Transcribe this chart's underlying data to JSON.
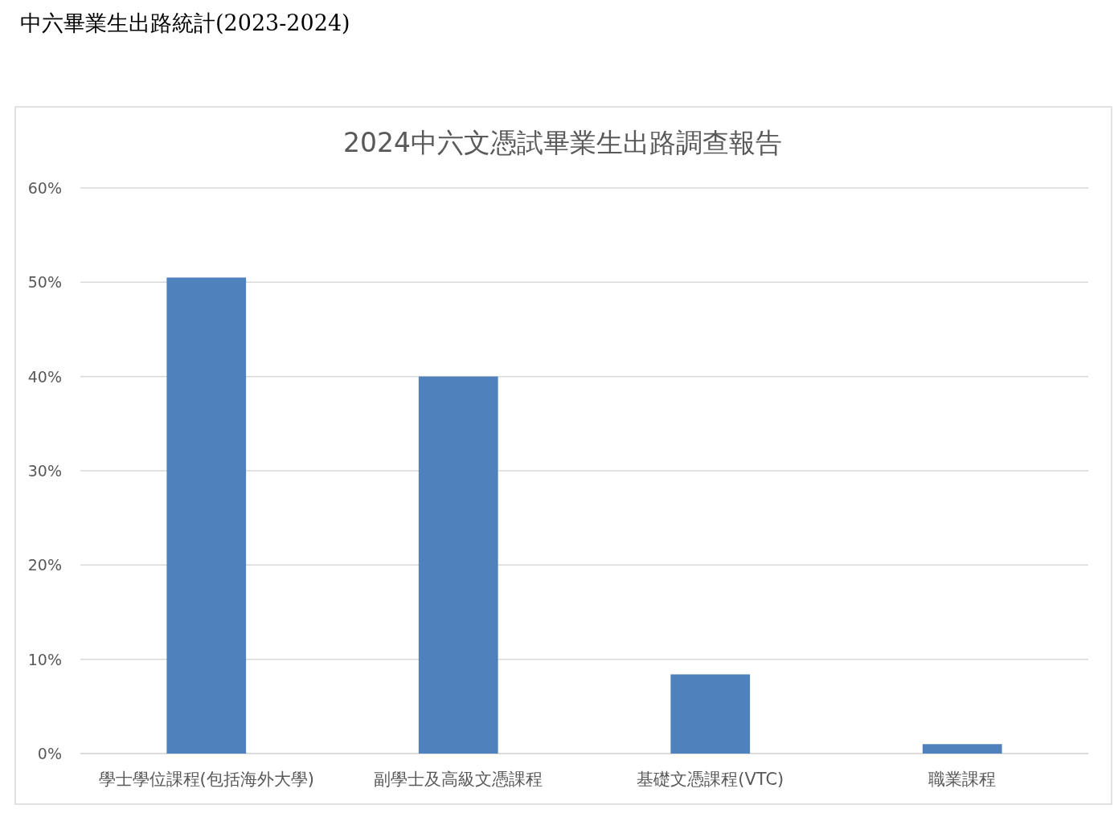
{
  "chart_data": {
    "type": "bar",
    "title": "中六畢業生出路統計(2023-2024)",
    "subtitle": "2024中六文憑試畢業生出路調查報告",
    "categories": [
      "學士學位課程(包括海外大學)",
      "副學士及高級文憑課程",
      "基礎文憑課程(VTC)",
      "職業課程"
    ],
    "values": [
      50.5,
      40,
      8.4,
      1.0
    ],
    "color": "#4f81bd",
    "ylim": [
      0,
      60
    ],
    "yticks": [
      {
        "value": 0,
        "label": "0%"
      },
      {
        "value": 10,
        "label": "10%"
      },
      {
        "value": 20,
        "label": "20%"
      },
      {
        "value": 30,
        "label": "30%"
      },
      {
        "value": 40,
        "label": "40%"
      },
      {
        "value": 50,
        "label": "50%"
      },
      {
        "value": 60,
        "label": "60%"
      }
    ],
    "grid": "y"
  }
}
